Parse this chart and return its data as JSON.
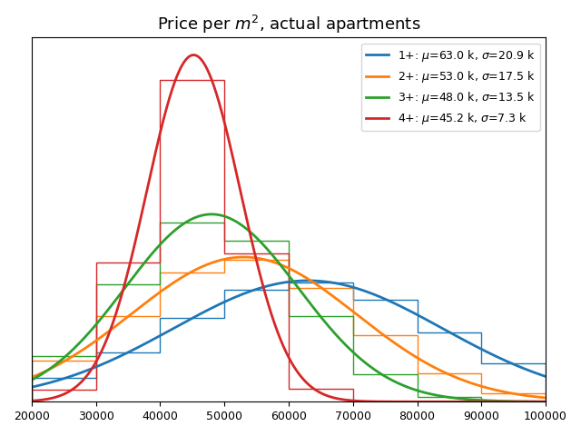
{
  "title": "Price per $m^2$, actual apartments",
  "xmin": 20000,
  "xmax": 100000,
  "series": [
    {
      "label": "1+: $\\mu$=63.0 k, $\\sigma$=20.9 k",
      "mu": 63000,
      "sigma": 20900,
      "color": "#1f77b4"
    },
    {
      "label": "2+: $\\mu$=53.0 k, $\\sigma$=17.5 k",
      "mu": 53000,
      "sigma": 17500,
      "color": "#ff7f0e"
    },
    {
      "label": "3+: $\\mu$=48.0 k, $\\sigma$=13.5 k",
      "mu": 48000,
      "sigma": 13500,
      "color": "#2ca02c"
    },
    {
      "label": "4+: $\\mu$=45.2 k, $\\sigma$=7.3 k",
      "mu": 45200,
      "sigma": 7300,
      "color": "#d62728"
    }
  ],
  "hist_bins": [
    20000,
    30000,
    40000,
    50000,
    60000,
    70000,
    80000,
    90000,
    100000
  ],
  "hist_colors": [
    "#1f77b4",
    "#ff7f0e",
    "#2ca02c",
    "#d62728"
  ],
  "hist_keys": [
    "1+",
    "2+",
    "3+",
    "4+"
  ],
  "figsize": [
    6.4,
    4.8
  ],
  "dpi": 100,
  "linewidth_curve": 2.0,
  "linewidth_hist": 1.0
}
